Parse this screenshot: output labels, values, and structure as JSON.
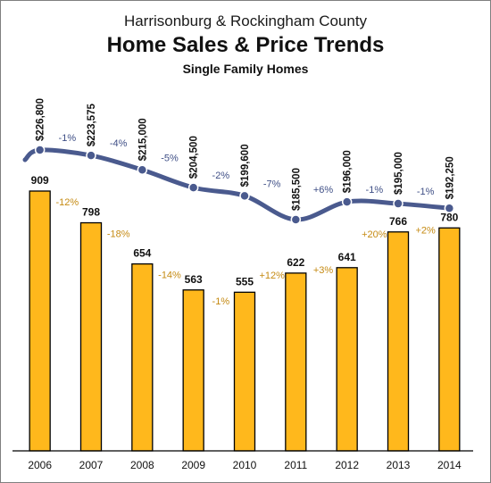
{
  "header": {
    "subtitle_top": "Harrisonburg & Rockingham County",
    "title": "Home Sales & Price Trends",
    "subtitle_bottom": "Single Family Homes"
  },
  "colors": {
    "bar_fill": "#FFB81C",
    "bar_stroke": "#000000",
    "line": "#4A5A8E",
    "sales_change_label": "#C58A12",
    "price_change_label": "#3F4F86",
    "axis": "#000000"
  },
  "chart_data": {
    "type": "bar",
    "categories": [
      "2006",
      "2007",
      "2008",
      "2009",
      "2010",
      "2011",
      "2012",
      "2013",
      "2014"
    ],
    "series": [
      {
        "values": [
          909,
          798,
          654,
          563,
          555,
          622,
          641,
          766,
          780
        ],
        "value_labels": [
          "909",
          "798",
          "654",
          "563",
          "555",
          "622",
          "641",
          "766",
          "780"
        ],
        "change_labels": [
          "-12%",
          "-18%",
          "-14%",
          "-1%",
          "+12%",
          "+3%",
          "+20%",
          "+2%"
        ]
      },
      {
        "type": "line",
        "values": [
          226800,
          223575,
          215000,
          204500,
          199600,
          185500,
          196000,
          195000,
          192250
        ],
        "value_labels": [
          "$226,800",
          "$223,575",
          "$215,000",
          "$204,500",
          "$199,600",
          "$185,500",
          "$196,000",
          "$195,000",
          "$192,250"
        ],
        "change_labels": [
          "-1%",
          "-4%",
          "-5%",
          "-2%",
          "-7%",
          "+6%",
          "-1%",
          "-1%"
        ]
      }
    ],
    "bar_ylim": [
      0,
      1000
    ],
    "line_ylim": [
      150000,
      245000
    ],
    "grid": false,
    "legend": "none"
  }
}
